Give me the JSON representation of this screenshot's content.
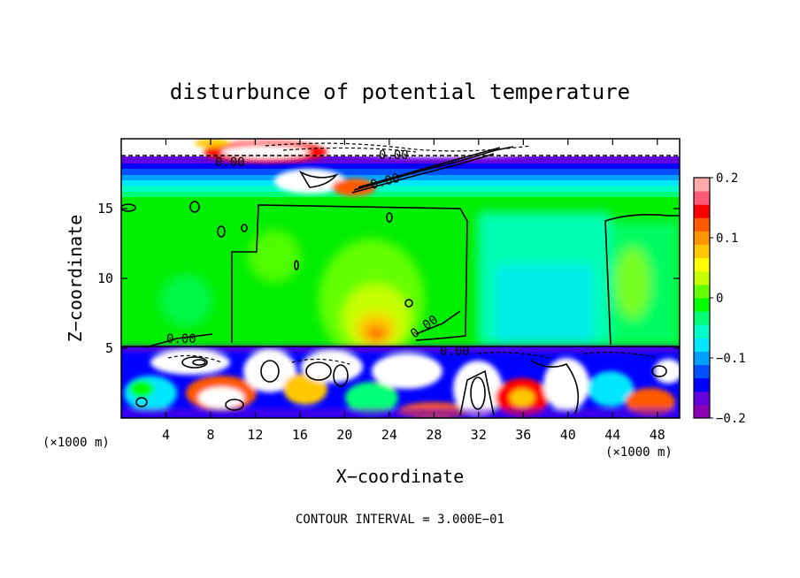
{
  "chart_data": {
    "type": "heatmap",
    "title": "disturbunce of potential temperature",
    "xlabel": "X−coordinate",
    "ylabel": "Z−coordinate",
    "x_unit": "(×1000 m)",
    "z_unit": "(×1000 m)",
    "xlim": [
      0,
      50
    ],
    "ylim": [
      0,
      20
    ],
    "x_ticks": [
      4,
      8,
      12,
      16,
      20,
      24,
      28,
      32,
      36,
      40,
      44,
      48
    ],
    "y_ticks": [
      5,
      10,
      15
    ],
    "colorbar": {
      "range": [
        -0.2,
        0.2
      ],
      "ticks": [
        0.2,
        0.1,
        0,
        -0.1,
        -0.2
      ],
      "tick_labels": [
        "0.2",
        "0.1",
        "0",
        "−0.1",
        "−0.2"
      ],
      "colors": [
        "#8b00b4",
        "#6400dc",
        "#0000ff",
        "#0050ff",
        "#00a0ff",
        "#00e6ff",
        "#00ffc8",
        "#00ff78",
        "#00ff00",
        "#64ff00",
        "#c8ff00",
        "#ffff00",
        "#ffc800",
        "#ff9600",
        "#ff5a00",
        "#ff0000",
        "#ff5a78",
        "#ffaaaa"
      ]
    },
    "contour_labels": [
      "0.00",
      "0.00",
      "0.00",
      "0.00",
      "0.00",
      "0.00"
    ],
    "annotation": "CONTOUR INTERVAL = 3.000E−01"
  }
}
